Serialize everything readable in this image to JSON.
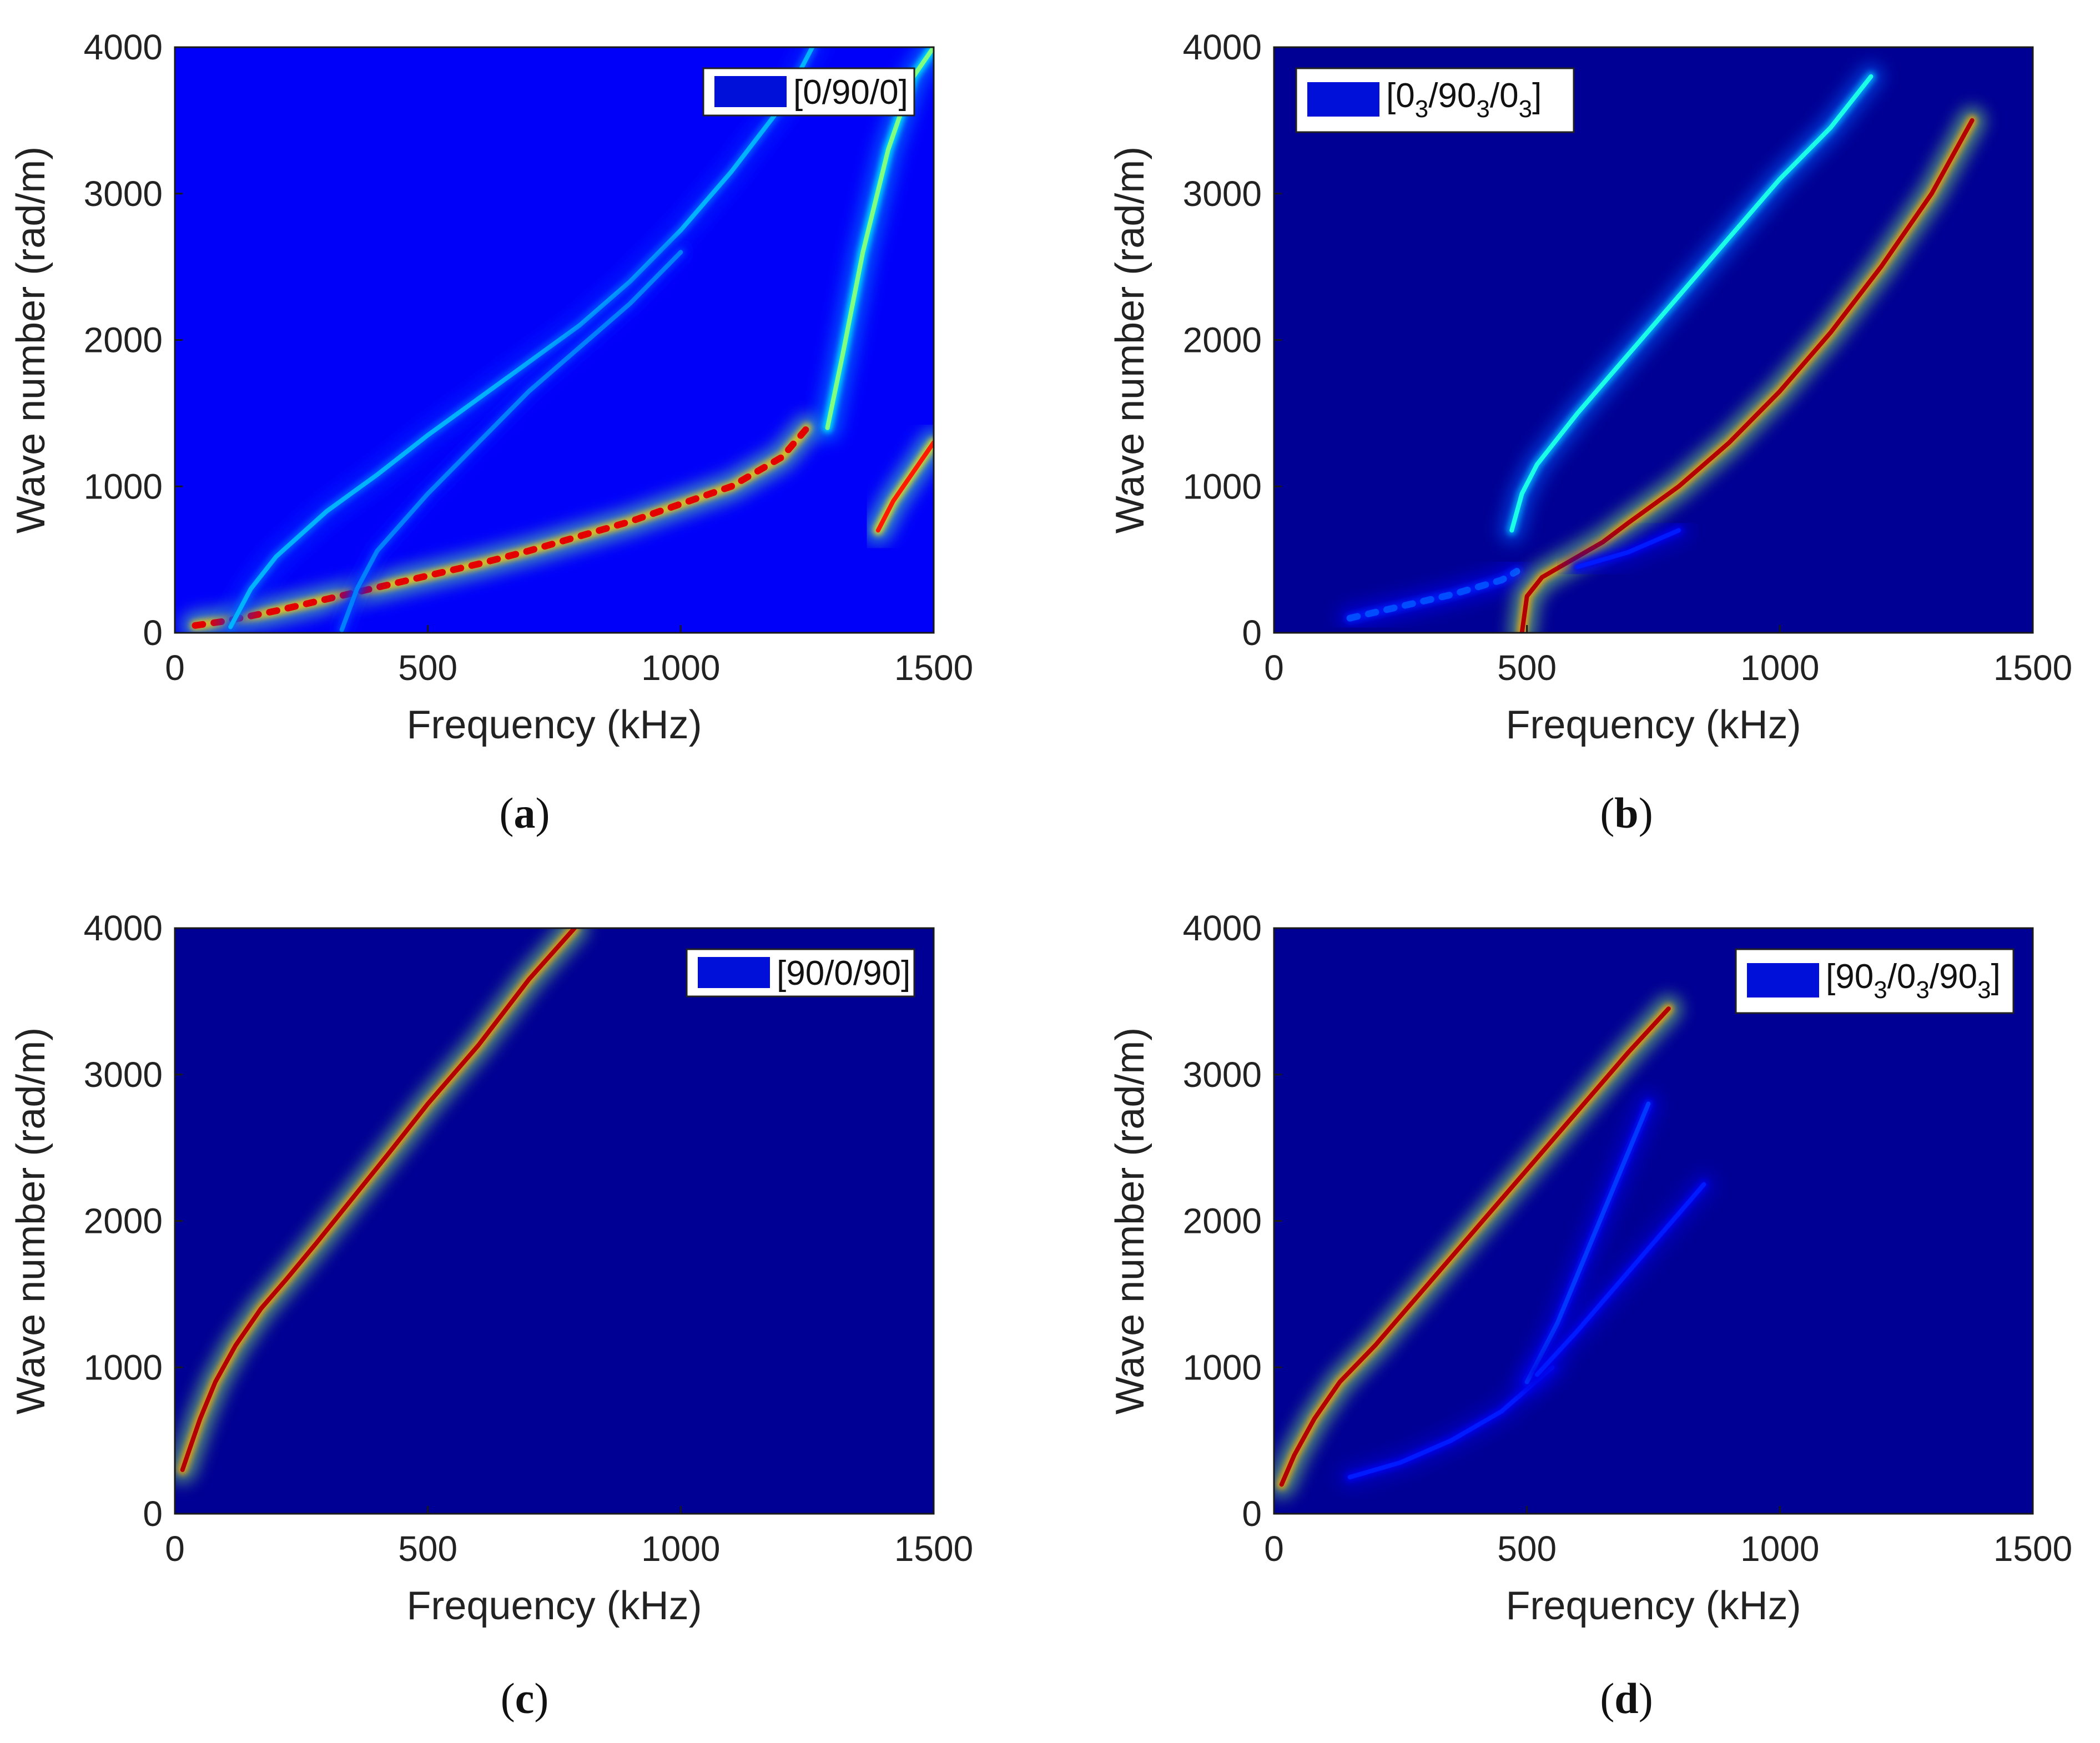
{
  "colors": {
    "background": "#00008F",
    "legend_swatch": "#0010D8"
  },
  "chart_data": [
    {
      "type": "heatmap",
      "panel": "a",
      "caption_open": "(",
      "caption_letter": "a",
      "caption_close": ")",
      "xlabel": "Frequency (kHz)",
      "ylabel": "Wave number (rad/m)",
      "xlim": [
        0,
        1500
      ],
      "ylim": [
        0,
        4000
      ],
      "xticks": [
        0,
        500,
        1000,
        1500
      ],
      "yticks": [
        0,
        1000,
        2000,
        3000,
        4000
      ],
      "legend": {
        "text": "[0/90/0]",
        "position": "top-right"
      },
      "background_level": 0.12,
      "curves": [
        {
          "name": "A0",
          "points": [
            [
              40,
              50
            ],
            [
              100,
              80
            ],
            [
              200,
              150
            ],
            [
              300,
              230
            ],
            [
              400,
              310
            ],
            [
              500,
              390
            ],
            [
              600,
              470
            ],
            [
              700,
              560
            ],
            [
              800,
              660
            ],
            [
              900,
              760
            ],
            [
              1000,
              880
            ],
            [
              1100,
              1000
            ],
            [
              1200,
              1200
            ],
            [
              1250,
              1400
            ]
          ],
          "peak": 0.9,
          "dotted": true
        },
        {
          "name": "S0",
          "points": [
            [
              110,
              40
            ],
            [
              150,
              300
            ],
            [
              200,
              520
            ],
            [
              300,
              830
            ],
            [
              400,
              1080
            ],
            [
              500,
              1350
            ],
            [
              600,
              1600
            ],
            [
              700,
              1850
            ],
            [
              800,
              2100
            ],
            [
              900,
              2400
            ],
            [
              1000,
              2750
            ],
            [
              1100,
              3150
            ],
            [
              1200,
              3600
            ],
            [
              1260,
              4000
            ]
          ],
          "peak": 0.3,
          "dotted": false
        },
        {
          "name": "SH1",
          "points": [
            [
              330,
              20
            ],
            [
              360,
              300
            ],
            [
              400,
              560
            ],
            [
              500,
              950
            ],
            [
              600,
              1300
            ],
            [
              700,
              1650
            ],
            [
              800,
              1950
            ],
            [
              900,
              2250
            ],
            [
              1000,
              2600
            ]
          ],
          "peak": 0.25,
          "dotted": false
        },
        {
          "name": "cutoff",
          "points": [
            [
              1290,
              1400
            ],
            [
              1320,
              1900
            ],
            [
              1360,
              2600
            ],
            [
              1410,
              3300
            ],
            [
              1460,
              3800
            ],
            [
              1500,
              4000
            ]
          ],
          "peak": 0.5,
          "dotted": false
        },
        {
          "name": "A1",
          "points": [
            [
              1390,
              700
            ],
            [
              1420,
              900
            ],
            [
              1460,
              1100
            ],
            [
              1500,
              1300
            ]
          ],
          "peak": 0.85,
          "dotted": false
        }
      ]
    },
    {
      "type": "heatmap",
      "panel": "b",
      "caption_open": "(",
      "caption_letter": "b",
      "caption_close": ")",
      "xlabel": "Frequency (kHz)",
      "ylabel": "Wave number (rad/m)",
      "xlim": [
        0,
        1500
      ],
      "ylim": [
        0,
        4000
      ],
      "xticks": [
        0,
        500,
        1000,
        1500
      ],
      "yticks": [
        0,
        1000,
        2000,
        3000,
        4000
      ],
      "legend": {
        "text": "[0",
        "sub1": "3",
        "t2": "/90",
        "sub2": "3",
        "t3": "/0",
        "sub3": "3",
        "t4": "]",
        "position": "top-left"
      },
      "background_level": 0.02,
      "curves": [
        {
          "name": "faint-low",
          "points": [
            [
              150,
              100
            ],
            [
              250,
              180
            ],
            [
              350,
              260
            ],
            [
              450,
              360
            ],
            [
              480,
              420
            ]
          ],
          "peak": 0.2,
          "dotted": true
        },
        {
          "name": "upper",
          "points": [
            [
              470,
              700
            ],
            [
              490,
              950
            ],
            [
              520,
              1150
            ],
            [
              600,
              1500
            ],
            [
              700,
              1900
            ],
            [
              800,
              2300
            ],
            [
              900,
              2700
            ],
            [
              1000,
              3100
            ],
            [
              1100,
              3450
            ],
            [
              1180,
              3800
            ]
          ],
          "peak": 0.4,
          "dotted": false
        },
        {
          "name": "lower",
          "points": [
            [
              490,
              0
            ],
            [
              500,
              250
            ],
            [
              530,
              380
            ],
            [
              580,
              480
            ],
            [
              650,
              620
            ],
            [
              700,
              750
            ],
            [
              800,
              1000
            ],
            [
              900,
              1300
            ],
            [
              1000,
              1650
            ],
            [
              1100,
              2050
            ],
            [
              1200,
              2500
            ],
            [
              1300,
              3000
            ],
            [
              1380,
              3500
            ]
          ],
          "peak": 0.95,
          "dotted": false
        },
        {
          "name": "mid-faint",
          "points": [
            [
              600,
              450
            ],
            [
              700,
              550
            ],
            [
              800,
              700
            ]
          ],
          "peak": 0.15,
          "dotted": false
        }
      ]
    },
    {
      "type": "heatmap",
      "panel": "c",
      "caption_open": "(",
      "caption_letter": "c",
      "caption_close": ")",
      "xlabel": "Frequency (kHz)",
      "ylabel": "Wave number (rad/m)",
      "xlim": [
        0,
        1500
      ],
      "ylim": [
        0,
        4000
      ],
      "xticks": [
        0,
        500,
        1000,
        1500
      ],
      "yticks": [
        0,
        1000,
        2000,
        3000,
        4000
      ],
      "legend": {
        "text": "[90/0/90]",
        "position": "top-right"
      },
      "background_level": 0.02,
      "curves": [
        {
          "name": "A0",
          "points": [
            [
              15,
              300
            ],
            [
              30,
              450
            ],
            [
              50,
              650
            ],
            [
              80,
              900
            ],
            [
              120,
              1150
            ],
            [
              170,
              1400
            ],
            [
              220,
              1600
            ],
            [
              280,
              1850
            ],
            [
              350,
              2150
            ],
            [
              420,
              2450
            ],
            [
              500,
              2800
            ],
            [
              600,
              3200
            ],
            [
              700,
              3650
            ],
            [
              790,
              4000
            ]
          ],
          "peak": 0.95,
          "dotted": false
        }
      ]
    },
    {
      "type": "heatmap",
      "panel": "d",
      "caption_open": "(",
      "caption_letter": "d",
      "caption_close": ")",
      "xlabel": "Frequency (kHz)",
      "ylabel": "Wave number (rad/m)",
      "xlim": [
        0,
        1500
      ],
      "ylim": [
        0,
        4000
      ],
      "xticks": [
        0,
        500,
        1000,
        1500
      ],
      "yticks": [
        0,
        1000,
        2000,
        3000,
        4000
      ],
      "legend": {
        "text": "[90",
        "sub1": "3",
        "t2": "/0",
        "sub2": "3",
        "t3": "/90",
        "sub3": "3",
        "t4": "]",
        "position": "top-right"
      },
      "background_level": 0.02,
      "curves": [
        {
          "name": "A0",
          "points": [
            [
              15,
              200
            ],
            [
              40,
              400
            ],
            [
              80,
              650
            ],
            [
              130,
              900
            ],
            [
              200,
              1150
            ],
            [
              300,
              1550
            ],
            [
              400,
              1950
            ],
            [
              500,
              2350
            ],
            [
              600,
              2750
            ],
            [
              700,
              3150
            ],
            [
              780,
              3450
            ]
          ],
          "peak": 0.95,
          "dotted": false
        },
        {
          "name": "faint-low",
          "points": [
            [
              150,
              250
            ],
            [
              250,
              350
            ],
            [
              350,
              500
            ],
            [
              450,
              700
            ],
            [
              500,
              850
            ],
            [
              550,
              1000
            ]
          ],
          "peak": 0.15,
          "dotted": false
        },
        {
          "name": "faint-upper",
          "points": [
            [
              500,
              900
            ],
            [
              560,
              1300
            ],
            [
              620,
              1800
            ],
            [
              680,
              2300
            ],
            [
              740,
              2800
            ]
          ],
          "peak": 0.18,
          "dotted": false
        },
        {
          "name": "faint-right",
          "points": [
            [
              520,
              950
            ],
            [
              600,
              1250
            ],
            [
              700,
              1650
            ],
            [
              800,
              2050
            ],
            [
              850,
              2250
            ]
          ],
          "peak": 0.15,
          "dotted": false
        }
      ]
    }
  ]
}
